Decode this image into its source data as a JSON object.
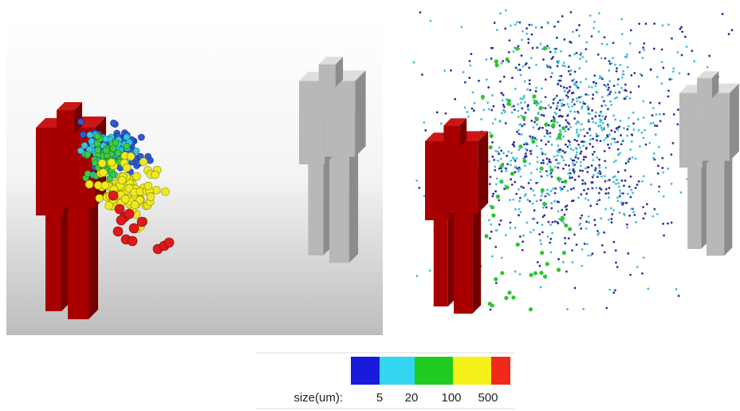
{
  "legend": {
    "label": "size(um):",
    "ticks": [
      "5",
      "20",
      "100",
      "500"
    ]
  }
}
